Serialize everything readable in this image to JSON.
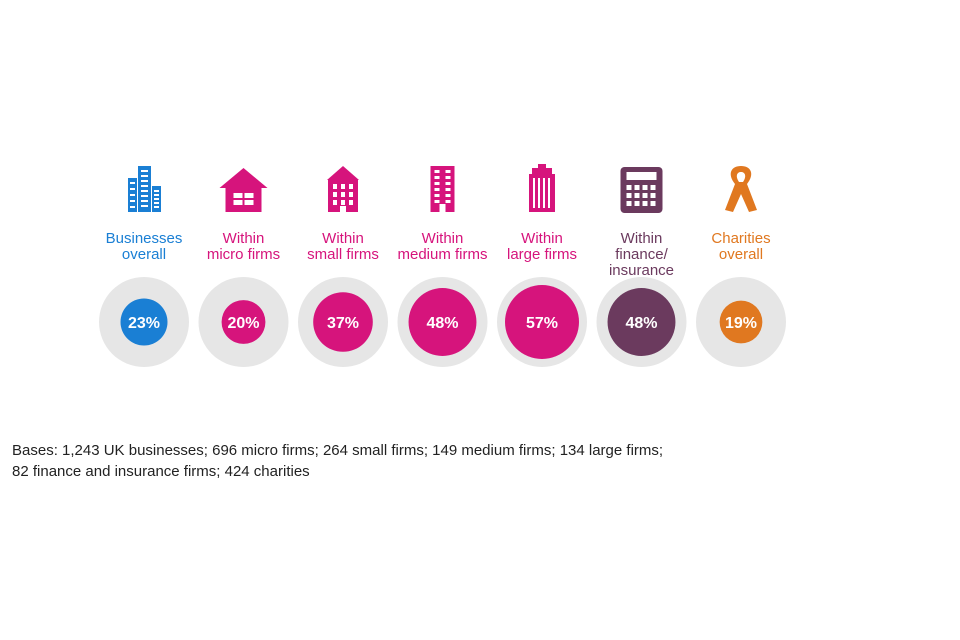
{
  "chart_data": {
    "type": "bubble",
    "title": "",
    "unit": "%",
    "categories": [
      {
        "label_lines": [
          "Businesses",
          "overall"
        ],
        "value": 23,
        "display": "23%",
        "color": "#1a7fd4",
        "icon": "office-buildings-icon"
      },
      {
        "label_lines": [
          "Within",
          "micro firms"
        ],
        "value": 20,
        "display": "20%",
        "color": "#d6147c",
        "icon": "house-icon"
      },
      {
        "label_lines": [
          "Within",
          "small firms"
        ],
        "value": 37,
        "display": "37%",
        "color": "#d6147c",
        "icon": "small-building-icon"
      },
      {
        "label_lines": [
          "Within",
          "medium firms"
        ],
        "value": 48,
        "display": "48%",
        "color": "#d6147c",
        "icon": "medium-building-icon"
      },
      {
        "label_lines": [
          "Within",
          "large firms"
        ],
        "value": 57,
        "display": "57%",
        "color": "#d6147c",
        "icon": "tower-building-icon"
      },
      {
        "label_lines": [
          "Within",
          "finance/",
          "insurance"
        ],
        "value": 48,
        "display": "48%",
        "color": "#6b3a5e",
        "icon": "calculator-icon"
      },
      {
        "label_lines": [
          "Charities",
          "overall"
        ],
        "value": 19,
        "display": "19%",
        "color": "#e07820",
        "icon": "ribbon-icon"
      }
    ],
    "background_circle_color": "#e6e6e6"
  },
  "footnote": {
    "line1": "Bases: 1,243 UK businesses; 696 micro firms; 264 small firms; 149 medium firms; 134 large firms;",
    "line2": "82 finance and insurance firms; 424 charities"
  }
}
